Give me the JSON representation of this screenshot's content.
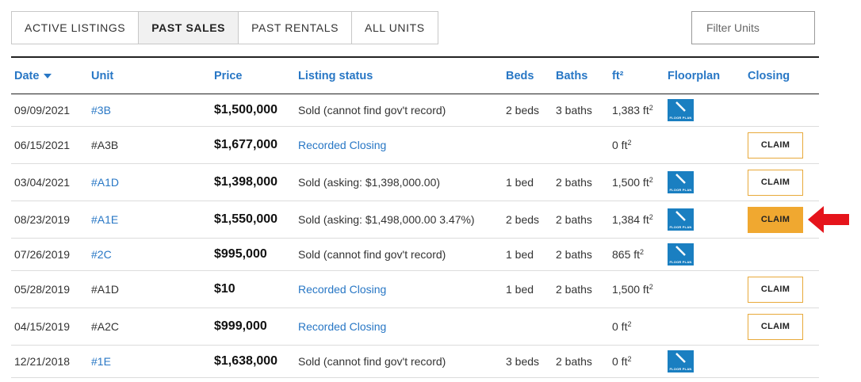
{
  "tabs": [
    {
      "label": "ACTIVE LISTINGS"
    },
    {
      "label": "PAST SALES"
    },
    {
      "label": "PAST RENTALS"
    },
    {
      "label": "ALL UNITS"
    }
  ],
  "filter": {
    "placeholder": "Filter Units"
  },
  "columns": {
    "date": "Date",
    "unit": "Unit",
    "price": "Price",
    "status": "Listing status",
    "beds": "Beds",
    "baths": "Baths",
    "sqft": "ft²",
    "floorplan": "Floorplan",
    "closing": "Closing"
  },
  "floorplan_icon_text": "FLOOR PLAN",
  "claim_label": "CLAIM",
  "colors": {
    "link": "#2877c5",
    "claim_highlight": "#f0a830",
    "claim_border": "#e8a93a",
    "floorplan_bg": "#1a7fc1",
    "arrow": "#e5141b"
  },
  "rows": [
    {
      "date": "09/09/2021",
      "unit": "#3B",
      "price": "$1,500,000",
      "status": "Sold (cannot find gov't record)",
      "beds": "2 beds",
      "baths": "3 baths",
      "sqft": "1,383 ft",
      "sqft_sup": "2"
    },
    {
      "date": "06/15/2021",
      "unit": "#A3B",
      "price": "$1,677,000",
      "status": "Recorded Closing",
      "beds": "",
      "baths": "",
      "sqft": "0 ft",
      "sqft_sup": "2"
    },
    {
      "date": "03/04/2021",
      "unit": "#A1D",
      "price": "$1,398,000",
      "status": "Sold (asking: $1,398,000.00)",
      "beds": "1 bed",
      "baths": "2 baths",
      "sqft": "1,500 ft",
      "sqft_sup": "2"
    },
    {
      "date": "08/23/2019",
      "unit": "#A1E",
      "price": "$1,550,000",
      "status": "Sold (asking: $1,498,000.00 3.47%)",
      "beds": "2 beds",
      "baths": "2 baths",
      "sqft": "1,384 ft",
      "sqft_sup": "2"
    },
    {
      "date": "07/26/2019",
      "unit": "#2C",
      "price": "$995,000",
      "status": "Sold (cannot find gov't record)",
      "beds": "1 bed",
      "baths": "2 baths",
      "sqft": "865 ft",
      "sqft_sup": "2"
    },
    {
      "date": "05/28/2019",
      "unit": "#A1D",
      "price": "$10",
      "status": "Recorded Closing",
      "beds": "1 bed",
      "baths": "2 baths",
      "sqft": "1,500 ft",
      "sqft_sup": "2"
    },
    {
      "date": "04/15/2019",
      "unit": "#A2C",
      "price": "$999,000",
      "status": "Recorded Closing",
      "beds": "",
      "baths": "",
      "sqft": "0 ft",
      "sqft_sup": "2"
    },
    {
      "date": "12/21/2018",
      "unit": "#1E",
      "price": "$1,638,000",
      "status": "Sold (cannot find gov't record)",
      "beds": "3 beds",
      "baths": "2 baths",
      "sqft": "0 ft",
      "sqft_sup": "2"
    }
  ]
}
